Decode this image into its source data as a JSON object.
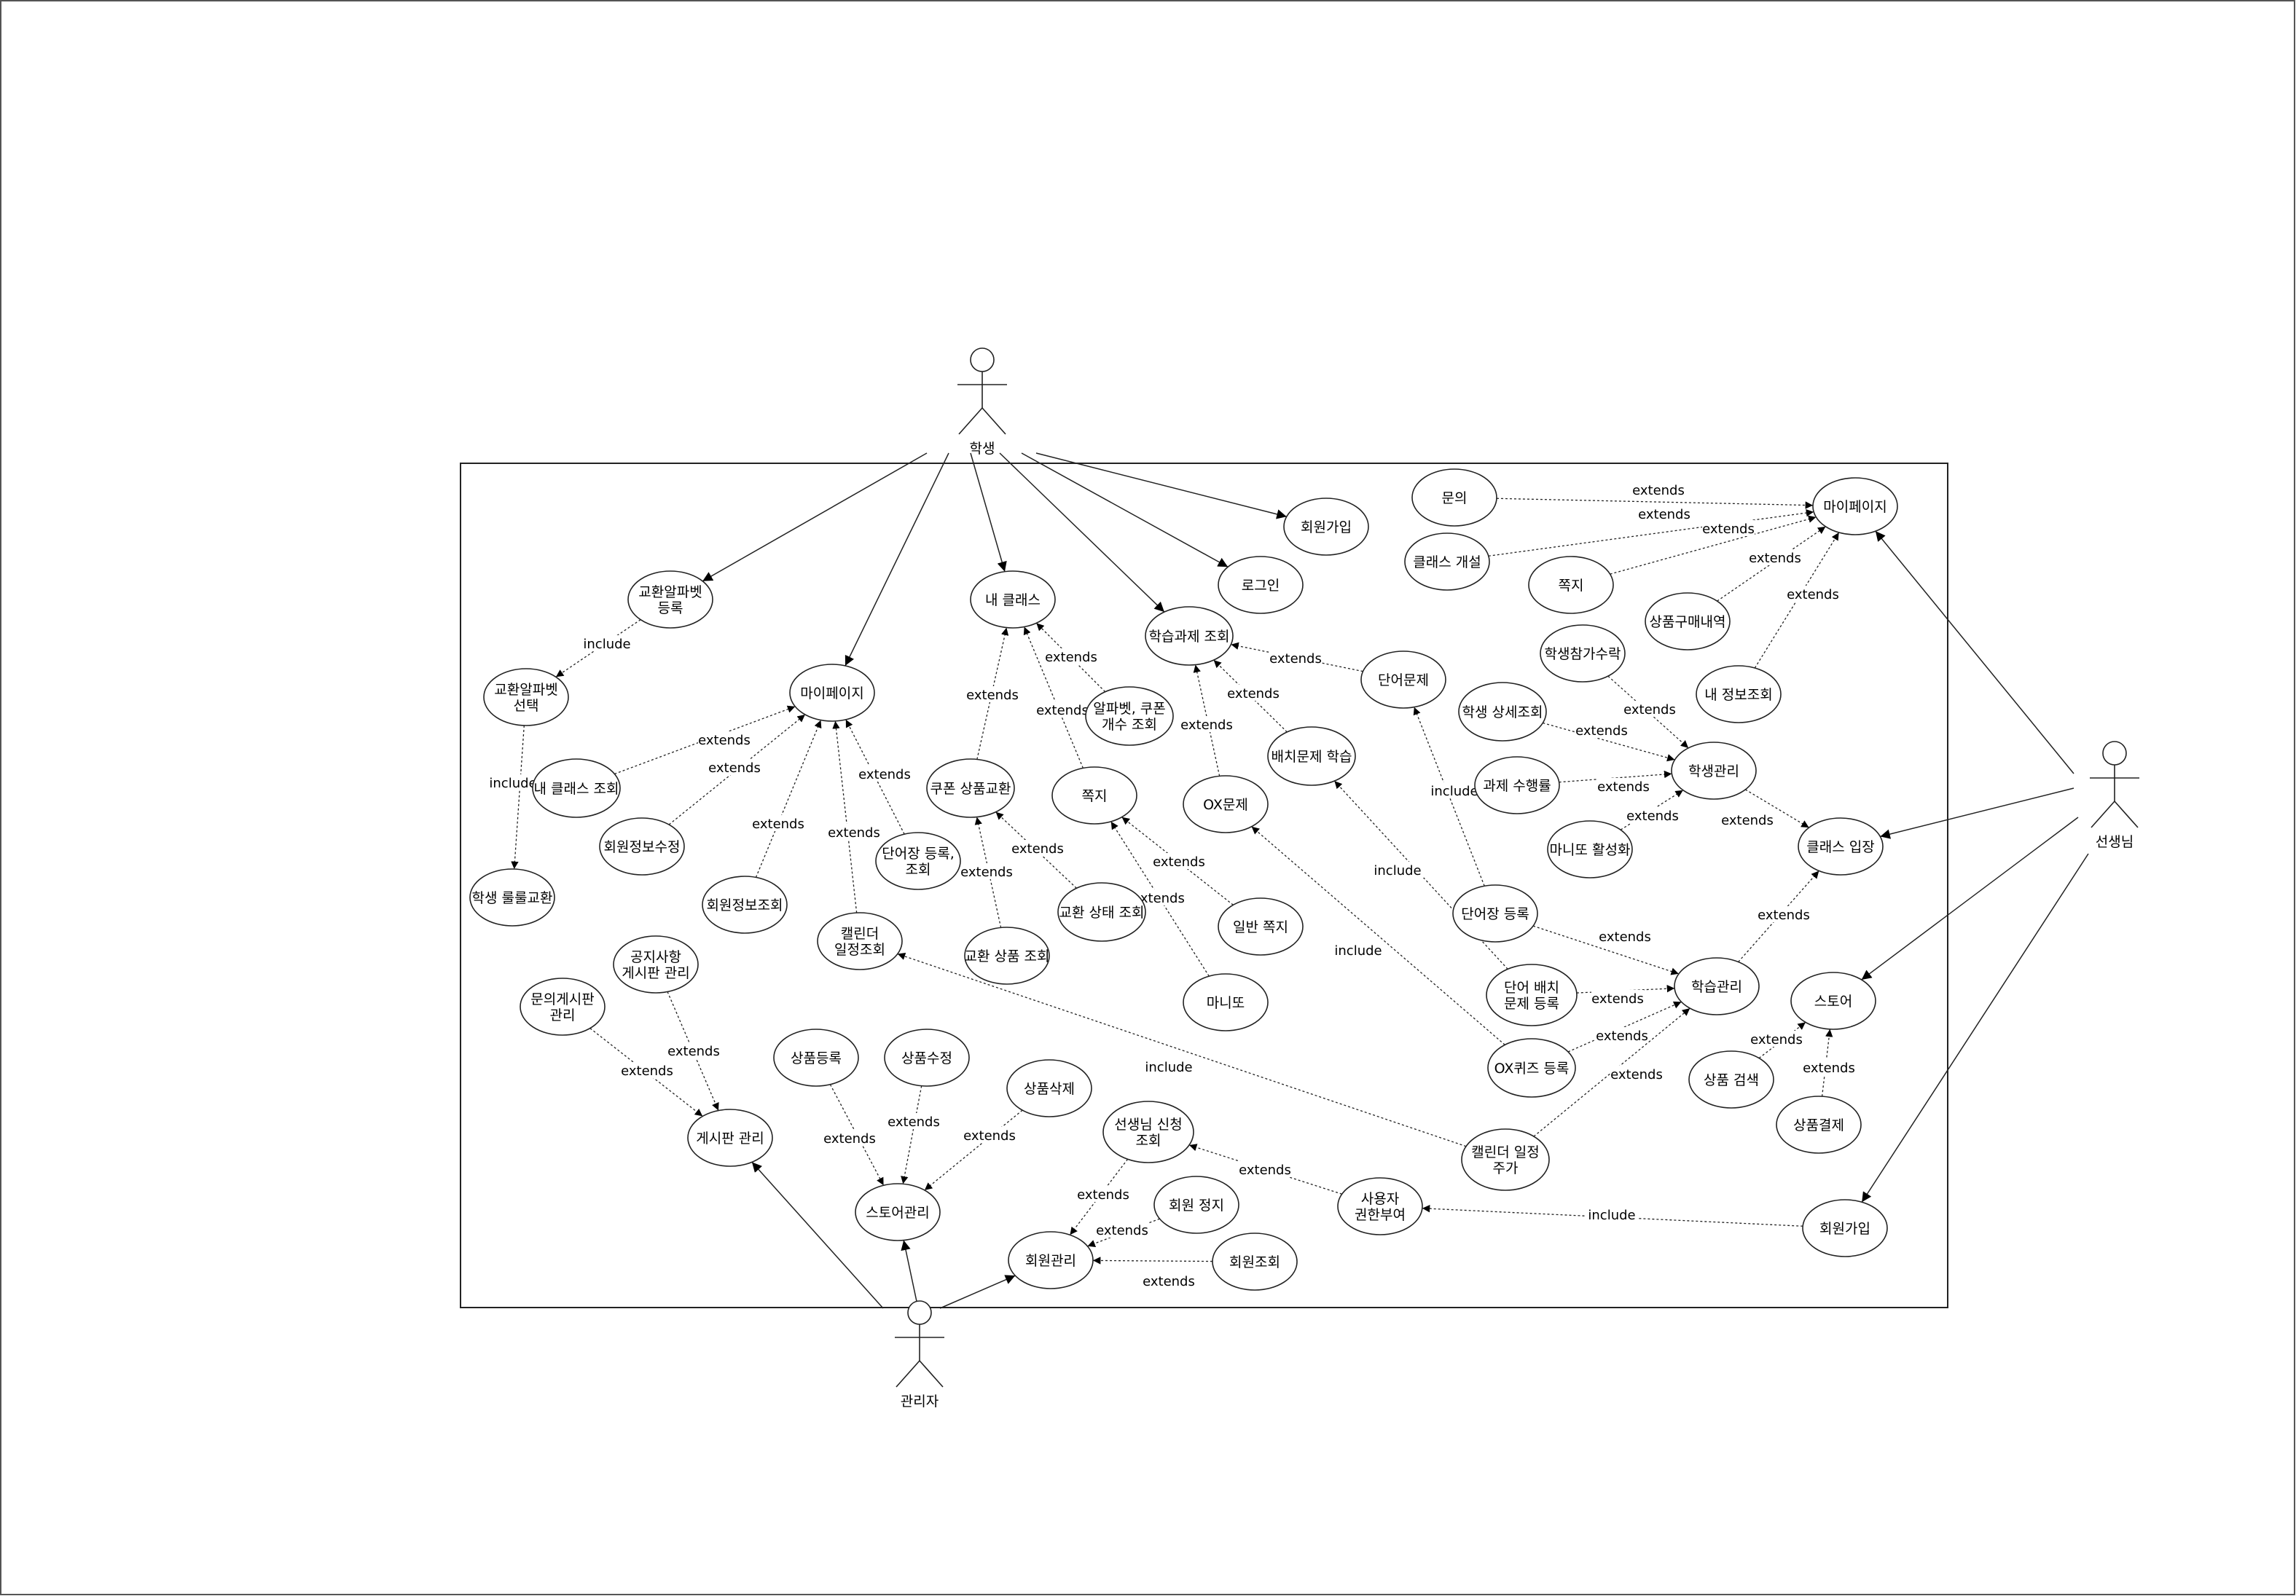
{
  "diagram": {
    "actors": [
      {
        "id": "student",
        "label": "학생"
      },
      {
        "id": "teacher",
        "label": "선생님"
      },
      {
        "id": "admin",
        "label": "관리자"
      }
    ],
    "use_cases": [
      {
        "id": "s_exch_reg",
        "lines": [
          "교환알파벳",
          "등록"
        ]
      },
      {
        "id": "s_exch_sel",
        "lines": [
          "교환알파벳",
          "선택"
        ]
      },
      {
        "id": "s_roll",
        "lines": [
          "학생 룰룰교환"
        ]
      },
      {
        "id": "s_mypage",
        "lines": [
          "마이페이지"
        ]
      },
      {
        "id": "s_myclass_q",
        "lines": [
          "내 클래스 조회"
        ]
      },
      {
        "id": "s_info_edit",
        "lines": [
          "회원정보수정"
        ]
      },
      {
        "id": "s_info_q",
        "lines": [
          "회원정보조회"
        ]
      },
      {
        "id": "s_calendar",
        "lines": [
          "캘린더",
          "일정조회"
        ]
      },
      {
        "id": "s_vocab_reg",
        "lines": [
          "단어장 등록,",
          "조회"
        ]
      },
      {
        "id": "s_myclass",
        "lines": [
          "내 클래스"
        ]
      },
      {
        "id": "s_alpha",
        "lines": [
          "알파벳, 쿠폰",
          "개수 조회"
        ]
      },
      {
        "id": "s_coupon",
        "lines": [
          "쿠폰 상품교환"
        ]
      },
      {
        "id": "s_note",
        "lines": [
          "쪽지"
        ]
      },
      {
        "id": "s_exch_status",
        "lines": [
          "교환 상태 조회"
        ]
      },
      {
        "id": "s_exch_item",
        "lines": [
          "교환 상품 조회"
        ]
      },
      {
        "id": "s_normal_note",
        "lines": [
          "일반 쪽지"
        ]
      },
      {
        "id": "s_manitto",
        "lines": [
          "마니또"
        ]
      },
      {
        "id": "s_hw",
        "lines": [
          "학습과제 조회"
        ]
      },
      {
        "id": "s_login",
        "lines": [
          "로그인"
        ]
      },
      {
        "id": "s_signup",
        "lines": [
          "회원가입"
        ]
      },
      {
        "id": "s_word",
        "lines": [
          "단어문제"
        ]
      },
      {
        "id": "s_place",
        "lines": [
          "배치문제 학습"
        ]
      },
      {
        "id": "s_ox",
        "lines": [
          "OX문제"
        ]
      },
      {
        "id": "t_inquiry",
        "lines": [
          "문의"
        ]
      },
      {
        "id": "t_class_open",
        "lines": [
          "클래스 개설"
        ]
      },
      {
        "id": "t_note",
        "lines": [
          "쪽지"
        ]
      },
      {
        "id": "t_mypage",
        "lines": [
          "마이페이지"
        ]
      },
      {
        "id": "t_purchase",
        "lines": [
          "상품구매내역"
        ]
      },
      {
        "id": "t_myinfo",
        "lines": [
          "내 정보조회"
        ]
      },
      {
        "id": "t_accept",
        "lines": [
          "학생참가수락"
        ]
      },
      {
        "id": "t_detail",
        "lines": [
          "학생 상세조회"
        ]
      },
      {
        "id": "t_perf",
        "lines": [
          "과제 수행률"
        ]
      },
      {
        "id": "t_manitto",
        "lines": [
          "마니또 활성화"
        ]
      },
      {
        "id": "t_stu_mgmt",
        "lines": [
          "학생관리"
        ]
      },
      {
        "id": "t_enter",
        "lines": [
          "클래스 입장"
        ]
      },
      {
        "id": "t_vocab_reg",
        "lines": [
          "단어장 등록"
        ]
      },
      {
        "id": "t_place_reg",
        "lines": [
          "단어 배치",
          "문제 등록"
        ]
      },
      {
        "id": "t_ox_reg",
        "lines": [
          "OX퀴즈 등록"
        ]
      },
      {
        "id": "t_learn_mgmt",
        "lines": [
          "학습관리"
        ]
      },
      {
        "id": "t_store",
        "lines": [
          "스토어"
        ]
      },
      {
        "id": "t_search",
        "lines": [
          "상품 검색"
        ]
      },
      {
        "id": "t_pay",
        "lines": [
          "상품결제"
        ]
      },
      {
        "id": "t_cal_add",
        "lines": [
          "캘린더 일정",
          "주가"
        ]
      },
      {
        "id": "t_signup",
        "lines": [
          "회원가입"
        ]
      },
      {
        "id": "a_user_perm",
        "lines": [
          "사용자",
          "권한부여"
        ]
      },
      {
        "id": "a_notice",
        "lines": [
          "공지사항",
          "게시판 관리"
        ]
      },
      {
        "id": "a_inq_board",
        "lines": [
          "문의게시판",
          "관리"
        ]
      },
      {
        "id": "a_board",
        "lines": [
          "게시판 관리"
        ]
      },
      {
        "id": "a_item_reg",
        "lines": [
          "상품등록"
        ]
      },
      {
        "id": "a_item_edit",
        "lines": [
          "상품수정"
        ]
      },
      {
        "id": "a_item_del",
        "lines": [
          "상품삭제"
        ]
      },
      {
        "id": "a_store_mgmt",
        "lines": [
          "스토어관리"
        ]
      },
      {
        "id": "a_teacher_req",
        "lines": [
          "선생님 신청",
          "조회"
        ]
      },
      {
        "id": "a_suspend",
        "lines": [
          "회원 정지"
        ]
      },
      {
        "id": "a_member_mgmt",
        "lines": [
          "회원관리"
        ]
      },
      {
        "id": "a_member_q",
        "lines": [
          "회원조회"
        ]
      }
    ],
    "relations": [
      {
        "from": "student",
        "to": "s_exch_reg",
        "kind": "association"
      },
      {
        "from": "student",
        "to": "s_mypage",
        "kind": "association"
      },
      {
        "from": "student",
        "to": "s_myclass",
        "kind": "association"
      },
      {
        "from": "student",
        "to": "s_hw",
        "kind": "association"
      },
      {
        "from": "student",
        "to": "s_login",
        "kind": "association"
      },
      {
        "from": "student",
        "to": "s_signup",
        "kind": "association"
      },
      {
        "from": "s_exch_reg",
        "to": "s_exch_sel",
        "kind": "include"
      },
      {
        "from": "s_exch_sel",
        "to": "s_roll",
        "kind": "include"
      },
      {
        "from": "s_myclass_q",
        "to": "s_mypage",
        "kind": "extends"
      },
      {
        "from": "s_info_edit",
        "to": "s_mypage",
        "kind": "extends"
      },
      {
        "from": "s_info_q",
        "to": "s_mypage",
        "kind": "extends"
      },
      {
        "from": "s_calendar",
        "to": "s_mypage",
        "kind": "extends"
      },
      {
        "from": "s_vocab_reg",
        "to": "s_mypage",
        "kind": "extends"
      },
      {
        "from": "s_coupon",
        "to": "s_myclass",
        "kind": "extends"
      },
      {
        "from": "s_alpha",
        "to": "s_myclass",
        "kind": "extends"
      },
      {
        "from": "s_note",
        "to": "s_myclass",
        "kind": "extends"
      },
      {
        "from": "s_exch_status",
        "to": "s_coupon",
        "kind": "extends"
      },
      {
        "from": "s_exch_item",
        "to": "s_coupon",
        "kind": "extends"
      },
      {
        "from": "s_normal_note",
        "to": "s_note",
        "kind": "extends"
      },
      {
        "from": "s_manitto",
        "to": "s_note",
        "kind": "extends"
      },
      {
        "from": "s_word",
        "to": "s_hw",
        "kind": "extends"
      },
      {
        "from": "s_place",
        "to": "s_hw",
        "kind": "extends"
      },
      {
        "from": "s_ox",
        "to": "s_hw",
        "kind": "extends"
      },
      {
        "from": "teacher",
        "to": "t_mypage",
        "kind": "association"
      },
      {
        "from": "teacher",
        "to": "t_enter",
        "kind": "association"
      },
      {
        "from": "teacher",
        "to": "t_store",
        "kind": "association"
      },
      {
        "from": "teacher",
        "to": "t_signup",
        "kind": "association"
      },
      {
        "from": "t_inquiry",
        "to": "t_mypage",
        "kind": "extends"
      },
      {
        "from": "t_class_open",
        "to": "t_mypage",
        "kind": "extends"
      },
      {
        "from": "t_note",
        "to": "t_mypage",
        "kind": "extends"
      },
      {
        "from": "t_purchase",
        "to": "t_mypage",
        "kind": "extends"
      },
      {
        "from": "t_myinfo",
        "to": "t_mypage",
        "kind": "extends"
      },
      {
        "from": "t_accept",
        "to": "t_stu_mgmt",
        "kind": "extends"
      },
      {
        "from": "t_detail",
        "to": "t_stu_mgmt",
        "kind": "extends"
      },
      {
        "from": "t_perf",
        "to": "t_stu_mgmt",
        "kind": "extends"
      },
      {
        "from": "t_manitto",
        "to": "t_stu_mgmt",
        "kind": "extends"
      },
      {
        "from": "t_stu_mgmt",
        "to": "t_enter",
        "kind": "extends"
      },
      {
        "from": "t_learn_mgmt",
        "to": "t_enter",
        "kind": "extends"
      },
      {
        "from": "t_vocab_reg",
        "to": "t_learn_mgmt",
        "kind": "extends"
      },
      {
        "from": "t_place_reg",
        "to": "t_learn_mgmt",
        "kind": "extends"
      },
      {
        "from": "t_ox_reg",
        "to": "t_learn_mgmt",
        "kind": "extends"
      },
      {
        "from": "t_cal_add",
        "to": "t_learn_mgmt",
        "kind": "extends"
      },
      {
        "from": "t_vocab_reg",
        "to": "s_word",
        "kind": "include"
      },
      {
        "from": "t_place_reg",
        "to": "s_place",
        "kind": "include"
      },
      {
        "from": "t_ox_reg",
        "to": "s_ox",
        "kind": "include"
      },
      {
        "from": "t_cal_add",
        "to": "s_calendar",
        "kind": "include"
      },
      {
        "from": "t_search",
        "to": "t_store",
        "kind": "extends"
      },
      {
        "from": "t_pay",
        "to": "t_store",
        "kind": "extends"
      },
      {
        "from": "t_signup",
        "to": "a_user_perm",
        "kind": "include"
      },
      {
        "from": "admin",
        "to": "a_board",
        "kind": "association"
      },
      {
        "from": "admin",
        "to": "a_store_mgmt",
        "kind": "association"
      },
      {
        "from": "admin",
        "to": "a_member_mgmt",
        "kind": "association"
      },
      {
        "from": "a_notice",
        "to": "a_board",
        "kind": "extends"
      },
      {
        "from": "a_inq_board",
        "to": "a_board",
        "kind": "extends"
      },
      {
        "from": "a_item_reg",
        "to": "a_store_mgmt",
        "kind": "extends"
      },
      {
        "from": "a_item_edit",
        "to": "a_store_mgmt",
        "kind": "extends"
      },
      {
        "from": "a_item_del",
        "to": "a_store_mgmt",
        "kind": "extends"
      },
      {
        "from": "a_teacher_req",
        "to": "a_member_mgmt",
        "kind": "extends"
      },
      {
        "from": "a_suspend",
        "to": "a_member_mgmt",
        "kind": "extends"
      },
      {
        "from": "a_member_q",
        "to": "a_member_mgmt",
        "kind": "extends"
      },
      {
        "from": "a_user_perm",
        "to": "a_teacher_req",
        "kind": "extends"
      }
    ]
  }
}
